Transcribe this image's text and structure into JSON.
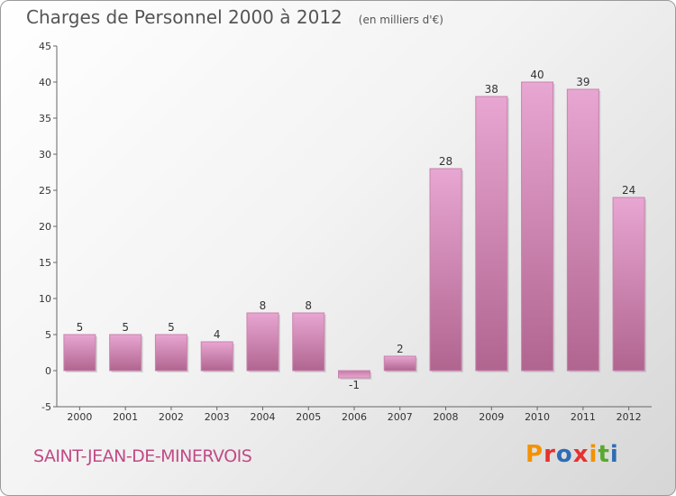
{
  "header": {
    "title": "Charges de Personnel 2000 à 2012",
    "subtitle": "(en milliers d'€)"
  },
  "footer": {
    "commune": "SAINT-JEAN-DE-MINERVOIS",
    "logo_text": "Proxiti",
    "logo_colors": [
      "#f39200",
      "#e6312f",
      "#2e6db4",
      "#e6312f",
      "#f39200",
      "#5aa82f",
      "#2e6db4"
    ]
  },
  "chart_data": {
    "type": "bar",
    "categories": [
      "2000",
      "2001",
      "2002",
      "2003",
      "2004",
      "2005",
      "2006",
      "2007",
      "2008",
      "2009",
      "2010",
      "2011",
      "2012"
    ],
    "values": [
      5,
      5,
      5,
      4,
      8,
      8,
      -1,
      2,
      28,
      38,
      40,
      39,
      24
    ],
    "title": "Charges de Personnel 2000 à 2012",
    "xlabel": "",
    "ylabel": "",
    "ylim": [
      -5,
      45
    ],
    "yticks": [
      -5,
      0,
      5,
      10,
      15,
      20,
      25,
      30,
      35,
      40,
      45
    ],
    "grid": false,
    "bar_color": "#d07ab0"
  }
}
